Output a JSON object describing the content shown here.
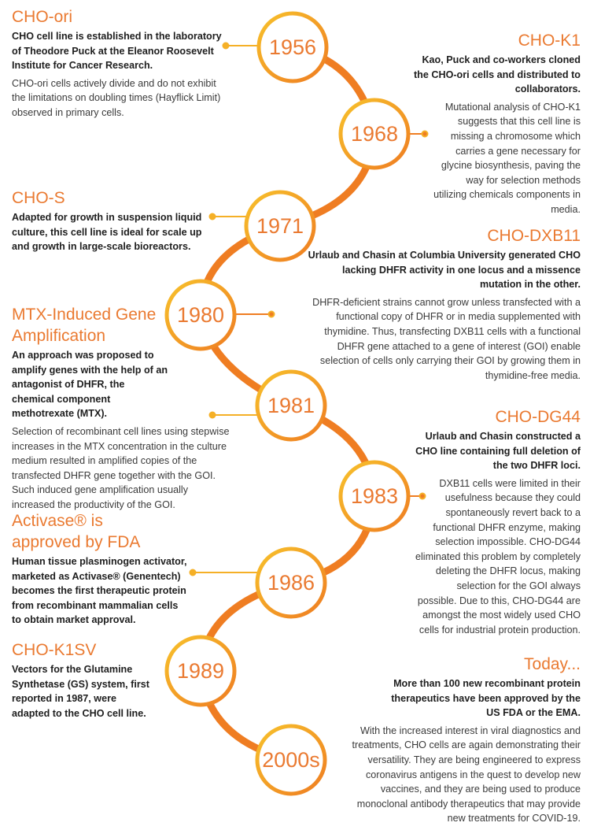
{
  "colors": {
    "accent": "#ea7a31",
    "ring_light": "#f7c12b",
    "ring_dark": "#ef7d22",
    "text": "#2b2b2b"
  },
  "years": [
    "1956",
    "1968",
    "1971",
    "1980",
    "1981",
    "1983",
    "1986",
    "1989",
    "2000s"
  ],
  "events": [
    {
      "title": "CHO-ori",
      "lead": "CHO cell line is established in the laboratory of Theodore Puck at the Eleanor Roosevelt Institute for Cancer Research.",
      "body": "CHO-ori cells actively divide and do not exhibit the limitations on doubling times (Hayflick Limit) observed in primary cells."
    },
    {
      "title": "CHO-K1",
      "lead": "Kao, Puck and co-workers cloned the CHO-ori cells and distributed to collaborators.",
      "body": "Mutational analysis of CHO-K1 suggests that this cell line is missing a chromosome which carries a gene necessary for glycine biosynthesis, paving the way for selection methods utilizing chemicals components in media."
    },
    {
      "title": "CHO-S",
      "lead": "Adapted for growth in suspension liquid culture, this cell line is ideal for scale up and growth in large-scale bioreactors.",
      "body": ""
    },
    {
      "title": "CHO-DXB11",
      "lead": "Urlaub and Chasin at Columbia University generated CHO lacking DHFR activity in one locus and a missence mutation in the other.",
      "body": "DHFR-deficient strains cannot grow unless transfected with a functional copy of DHFR or in media supplemented with thymidine. Thus, transfecting DXB11 cells with a functional DHFR gene attached to a gene of interest (GOI) enable selection of cells only carrying their GOI by growing them in thymidine-free media."
    },
    {
      "title": "MTX-Induced Gene Amplification",
      "lead": "An approach was proposed to amplify genes with the help of an antagonist of DHFR, the chemical component methotrexate (MTX).",
      "body": "Selection of recombinant cell lines using stepwise increases in the MTX concentration in the culture medium resulted in amplified copies of the transfected DHFR gene together with the GOI. Such induced gene amplification usually increased the productivity of the GOI."
    },
    {
      "title": "CHO-DG44",
      "lead": "Urlaub and Chasin constructed a CHO line containing full deletion of the two DHFR loci.",
      "body": "DXB11 cells were limited in their usefulness because they could spontaneously revert back to a functional DHFR enzyme, making selection impossible. CHO-DG44 eliminated this problem by completely deleting the DHFR locus, making selection for the GOI always possible. Due to this, CHO-DG44 are amongst the most widely used CHO cells for industrial protein production."
    },
    {
      "title": "Activase® is approved by FDA",
      "lead": "Human tissue plasminogen activator, marketed as Activase® (Genentech) becomes the first therapeutic protein from recombinant mammalian cells to obtain market approval.",
      "body": ""
    },
    {
      "title": "CHO-K1SV",
      "lead": "Vectors for the Glutamine Synthetase (GS) system, first reported in 1987, were adapted to the CHO cell line.",
      "body": ""
    },
    {
      "title": "Today...",
      "lead": "More than 100 new recombinant protein therapeutics have been approved by the US FDA or the EMA.",
      "body": "With the increased interest in viral diagnostics and treatments, CHO cells are again demonstrating their versatility. They are being engineered to express coronavirus antigens in the quest to develop new vaccines, and they are being used to produce monoclonal antibody therapeutics that may provide new treatments for COVID-19."
    }
  ]
}
